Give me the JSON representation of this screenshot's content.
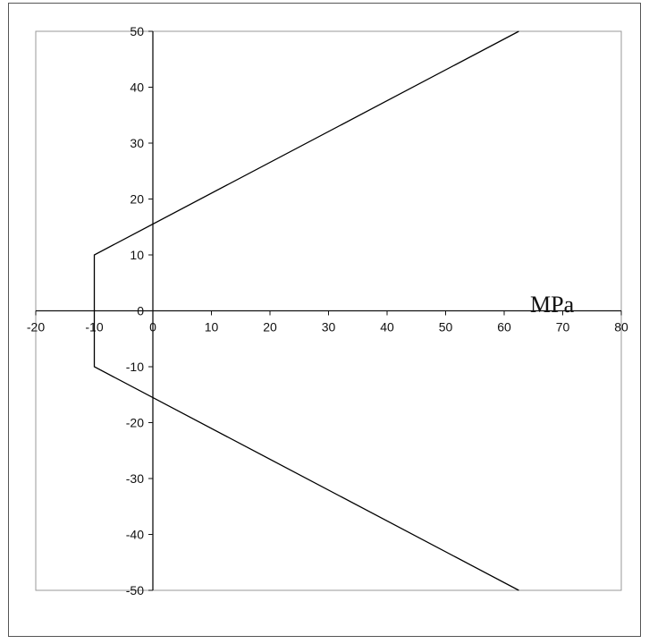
{
  "chart_data": {
    "type": "line",
    "title": "",
    "xlabel": "",
    "ylabel": "",
    "unit_annotation": "MPa",
    "xlim": [
      -20,
      80
    ],
    "ylim": [
      -50,
      50
    ],
    "x_ticks": [
      -20,
      -10,
      0,
      10,
      20,
      30,
      40,
      50,
      60,
      70,
      80
    ],
    "y_ticks": [
      -50,
      -40,
      -30,
      -20,
      -10,
      0,
      10,
      20,
      30,
      40,
      50
    ],
    "x_tick_labels": [
      "-20",
      "-10",
      "0",
      "10",
      "20",
      "30",
      "40",
      "50",
      "60",
      "70",
      "80"
    ],
    "y_tick_labels": [
      "-50",
      "-40",
      "-30",
      "-20",
      "-10",
      "0",
      "10",
      "20",
      "30",
      "40",
      "50"
    ],
    "grid": false,
    "legend": "none",
    "series": [
      {
        "color": "#000000",
        "points": [
          [
            62.5,
            50
          ],
          [
            -10,
            10
          ],
          [
            -10,
            -10
          ],
          [
            62.5,
            -50
          ]
        ]
      }
    ]
  }
}
